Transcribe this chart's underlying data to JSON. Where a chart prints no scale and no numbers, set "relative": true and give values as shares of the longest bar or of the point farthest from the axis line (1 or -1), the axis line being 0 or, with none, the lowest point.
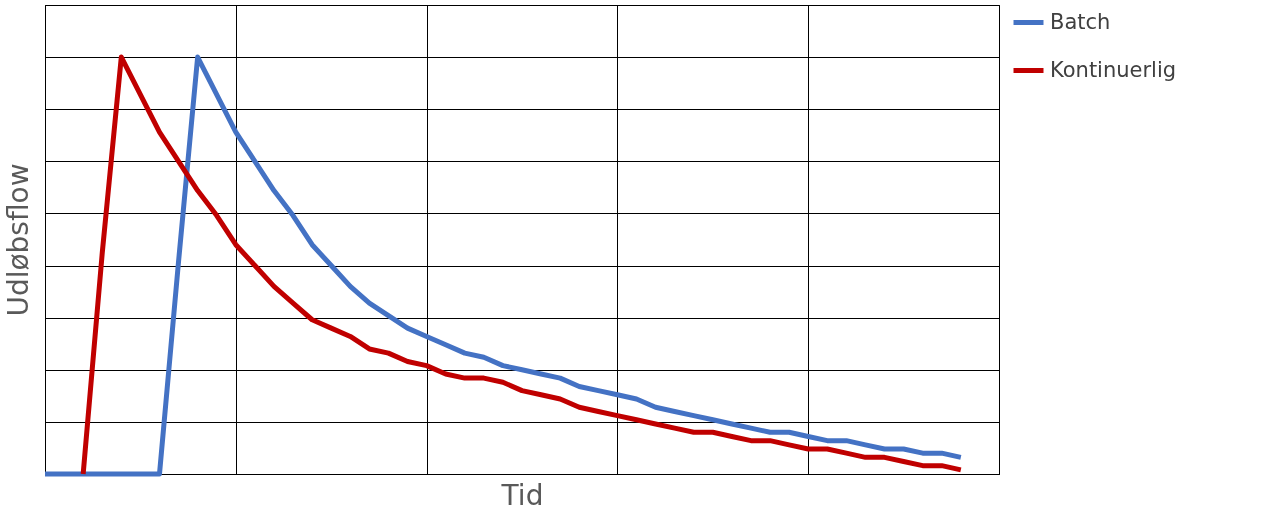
{
  "chart_data": {
    "type": "line",
    "xlabel": "Tid",
    "ylabel": "Udløbsflow",
    "relative": true,
    "grid": true,
    "legend": "right",
    "tick_labels": false,
    "line_style": "solid",
    "marker": "none",
    "categories": [
      null,
      null,
      null,
      null,
      null,
      null,
      null,
      null,
      null,
      null,
      null,
      null,
      null,
      null,
      null,
      null,
      null,
      null,
      null,
      null,
      null,
      null,
      null,
      null,
      null,
      null,
      null,
      null,
      null,
      null,
      null,
      null,
      null,
      null,
      null,
      null,
      null,
      null,
      null,
      null,
      null,
      null,
      null,
      null,
      null,
      null,
      null,
      null,
      null,
      null,
      null
    ],
    "series": [
      {
        "name": "Batch",
        "color": "#4472c4",
        "values": [
          0,
          0,
          0,
          0,
          0,
          0,
          0,
          0.51,
          1,
          0.91,
          0.82,
          0.75,
          0.68,
          0.62,
          0.55,
          0.5,
          0.45,
          0.41,
          0.38,
          0.35,
          0.33,
          0.31,
          0.29,
          0.28,
          0.26,
          0.25,
          0.24,
          0.23,
          0.21,
          0.2,
          0.19,
          0.18,
          0.16,
          0.15,
          0.14,
          0.13,
          0.12,
          0.11,
          0.1,
          0.1,
          0.09,
          0.08,
          0.08,
          0.07,
          0.06,
          0.06,
          0.05,
          0.05,
          0.04,
          null,
          null
        ]
      },
      {
        "name": "Kontinuerlig",
        "color": "#c00000",
        "values": [
          null,
          null,
          0,
          0.53,
          1,
          0.91,
          0.82,
          0.75,
          0.68,
          0.62,
          0.55,
          0.5,
          0.45,
          0.41,
          0.37,
          0.35,
          0.33,
          0.3,
          0.29,
          0.27,
          0.26,
          0.24,
          0.23,
          0.23,
          0.22,
          0.2,
          0.19,
          0.18,
          0.16,
          0.15,
          0.14,
          0.13,
          0.12,
          0.11,
          0.1,
          0.1,
          0.09,
          0.08,
          0.08,
          0.07,
          0.06,
          0.06,
          0.05,
          0.04,
          0.04,
          0.03,
          0.02,
          0.02,
          0.01,
          null,
          null
        ]
      }
    ]
  }
}
